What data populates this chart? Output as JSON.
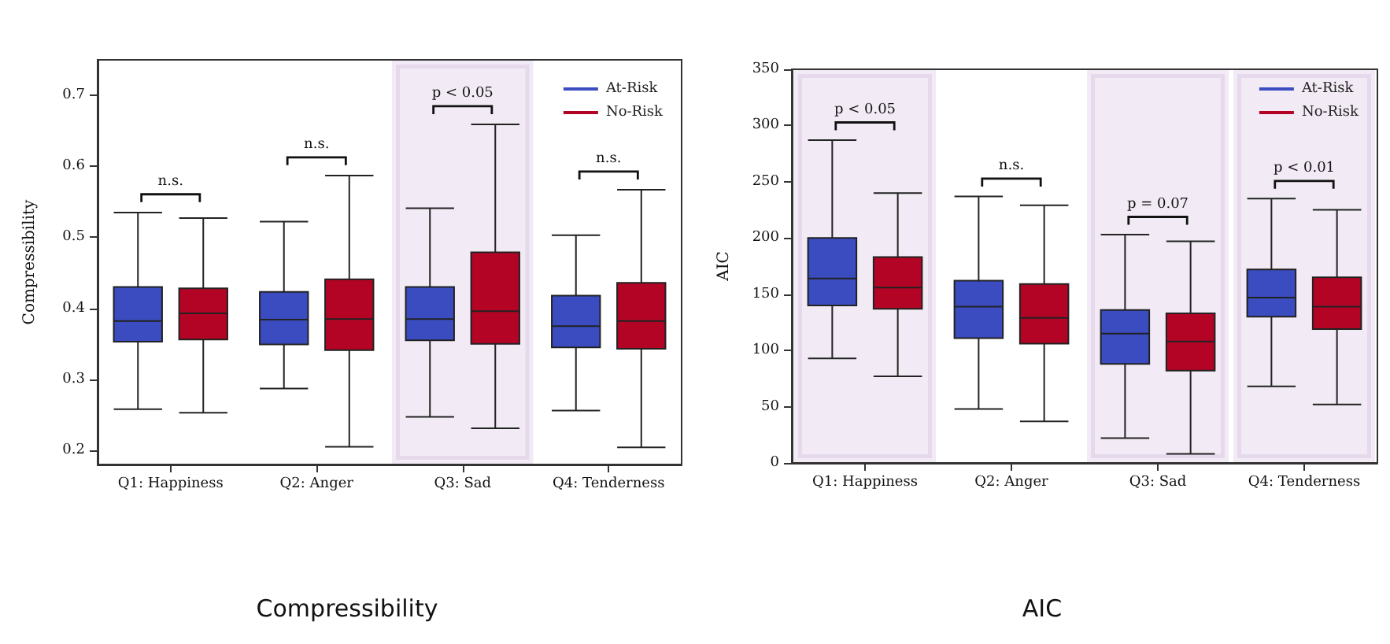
{
  "chart_data": [
    {
      "type": "box",
      "title": "Compressibility",
      "ylabel": "Compressibility",
      "categories": [
        "Q1: Happiness",
        "Q2: Anger",
        "Q3: Sad",
        "Q4: Tenderness"
      ],
      "ylim": [
        0.18,
        0.75
      ],
      "yticks": [
        0.2,
        0.3,
        0.4,
        0.5,
        0.6,
        0.7
      ],
      "grid": false,
      "legend": "top right",
      "series": [
        {
          "name": "At-Risk",
          "color": "#3b4cc0",
          "boxes": [
            {
              "low": 0.258,
              "q1": 0.353,
              "median": 0.382,
              "q3": 0.43,
              "high": 0.535
            },
            {
              "low": 0.287,
              "q1": 0.349,
              "median": 0.384,
              "q3": 0.423,
              "high": 0.522
            },
            {
              "low": 0.247,
              "q1": 0.355,
              "median": 0.385,
              "q3": 0.43,
              "high": 0.541
            },
            {
              "low": 0.256,
              "q1": 0.345,
              "median": 0.375,
              "q3": 0.418,
              "high": 0.503
            }
          ]
        },
        {
          "name": "No-Risk",
          "color": "#b40426",
          "boxes": [
            {
              "low": 0.253,
              "q1": 0.356,
              "median": 0.393,
              "q3": 0.428,
              "high": 0.527
            },
            {
              "low": 0.205,
              "q1": 0.341,
              "median": 0.385,
              "q3": 0.441,
              "high": 0.587
            },
            {
              "low": 0.231,
              "q1": 0.35,
              "median": 0.396,
              "q3": 0.479,
              "high": 0.659
            },
            {
              "low": 0.204,
              "q1": 0.343,
              "median": 0.382,
              "q3": 0.436,
              "high": 0.567
            }
          ]
        }
      ],
      "annotations": [
        "n.s.",
        "n.s.",
        "p < 0.05",
        "n.s."
      ],
      "bands": [
        {
          "axis": "x",
          "from": "Q3: Sad",
          "to": "Q3: Sad",
          "color": "#7b3f9e"
        }
      ]
    },
    {
      "type": "box",
      "title": "AIC",
      "ylabel": "AIC",
      "categories": [
        "Q1: Happiness",
        "Q2: Anger",
        "Q3: Sad",
        "Q4: Tenderness"
      ],
      "ylim": [
        0,
        350
      ],
      "yticks": [
        0,
        50,
        100,
        150,
        200,
        250,
        300,
        350
      ],
      "grid": false,
      "legend": "top right",
      "series": [
        {
          "name": "At-Risk",
          "color": "#3b4cc0",
          "boxes": [
            {
              "low": 93,
              "q1": 140,
              "median": 164,
              "q3": 200,
              "high": 287
            },
            {
              "low": 48,
              "q1": 111,
              "median": 139,
              "q3": 162,
              "high": 237
            },
            {
              "low": 22,
              "q1": 88,
              "median": 115,
              "q3": 136,
              "high": 203
            },
            {
              "low": 68,
              "q1": 130,
              "median": 147,
              "q3": 172,
              "high": 235
            }
          ]
        },
        {
          "name": "No-Risk",
          "color": "#b40426",
          "boxes": [
            {
              "low": 77,
              "q1": 137,
              "median": 156,
              "q3": 183,
              "high": 240
            },
            {
              "low": 37,
              "q1": 106,
              "median": 129,
              "q3": 159,
              "high": 229
            },
            {
              "low": 8,
              "q1": 82,
              "median": 108,
              "q3": 133,
              "high": 197
            },
            {
              "low": 52,
              "q1": 119,
              "median": 139,
              "q3": 165,
              "high": 225
            }
          ]
        }
      ],
      "annotations": [
        "p < 0.05",
        "n.s.",
        "p = 0.07",
        "p < 0.01"
      ],
      "bands": [
        {
          "axis": "x",
          "from": "Q1: Happiness",
          "to": "Q1: Happiness",
          "color": "#7b3f9e"
        },
        {
          "axis": "x",
          "from": "Q3: Sad",
          "to": "Q3: Sad",
          "color": "#7b3f9e"
        },
        {
          "axis": "x",
          "from": "Q4: Tenderness",
          "to": "Q4: Tenderness",
          "color": "#7b3f9e"
        }
      ]
    }
  ]
}
